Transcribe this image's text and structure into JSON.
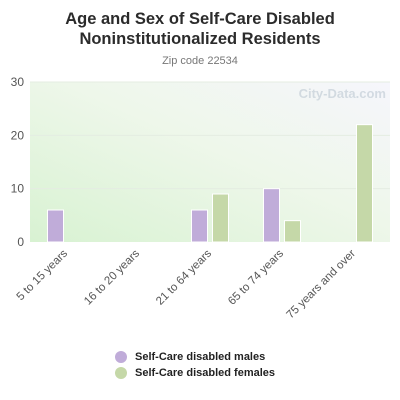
{
  "title_line1": "Age and Sex of Self-Care Disabled",
  "title_line2": "Noninstitutionalized Residents",
  "subtitle": "Zip code 22534",
  "watermark": "City-Data.com",
  "colors": {
    "males": "#c0acd9",
    "females": "#c5d8a8"
  },
  "chart_data": {
    "type": "bar",
    "categories": [
      "5 to 15 years",
      "16 to 20 years",
      "21 to 64 years",
      "65 to 74 years",
      "75 years and over"
    ],
    "series": [
      {
        "name": "Self-Care disabled males",
        "values": [
          6,
          0,
          6,
          10,
          0
        ]
      },
      {
        "name": "Self-Care disabled females",
        "values": [
          0,
          0,
          9,
          4,
          22
        ]
      }
    ],
    "ylim": [
      0,
      30
    ],
    "yticks": [
      0,
      10,
      20,
      30
    ],
    "grid": true,
    "legend_position": "bottom"
  }
}
